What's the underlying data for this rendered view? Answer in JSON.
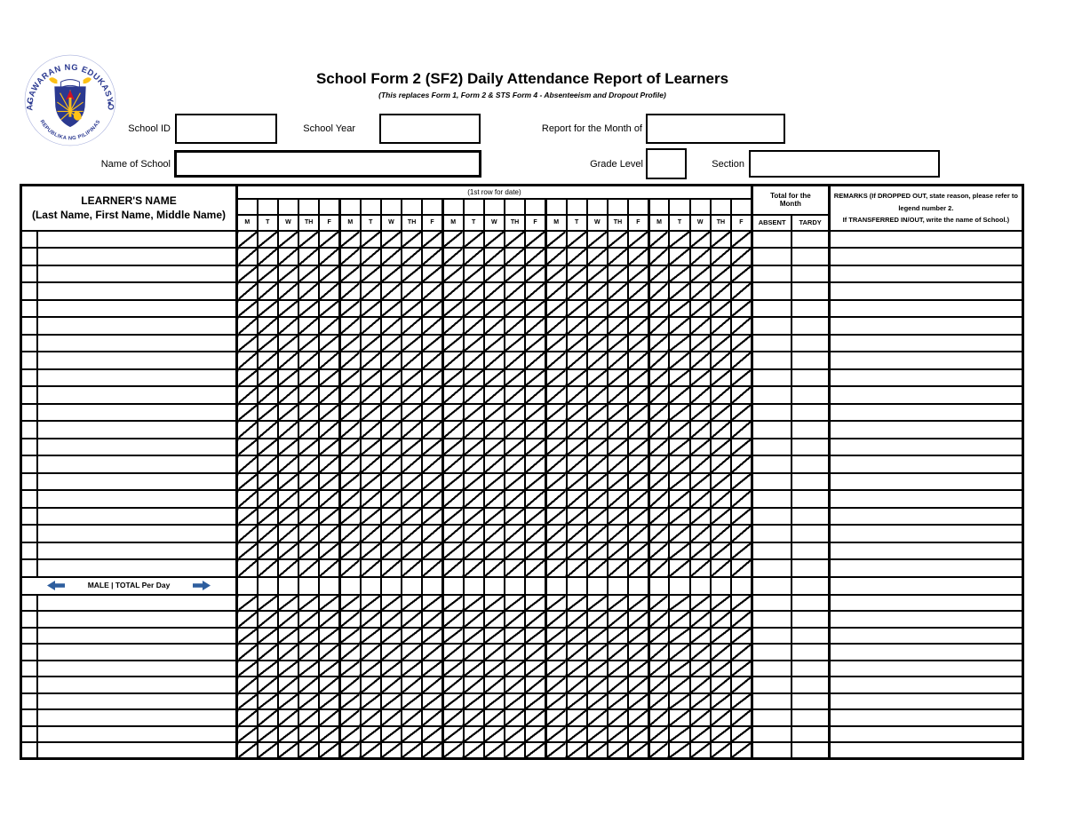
{
  "title": "School Form 2 (SF2) Daily Attendance Report of Learners",
  "subtitle": "(This replaces Form 1, Form 2 & STS Form 4 - Absenteeism and Dropout Profile)",
  "logo": {
    "top_text": "KAGAWARAN NG EDUKASYON",
    "bottom_text": "REPUBLIKA NG PILIPINAS"
  },
  "fields": {
    "school_id": {
      "label": "School ID",
      "value": ""
    },
    "school_year": {
      "label": "School Year",
      "value": ""
    },
    "report_month": {
      "label": "Report for the Month of",
      "value": ""
    },
    "school_name": {
      "label": "Name of School",
      "value": ""
    },
    "grade_level": {
      "label": "Grade Level",
      "value": ""
    },
    "section": {
      "label": "Section",
      "value": ""
    }
  },
  "table": {
    "learners_name_header": {
      "line1": "LEARNER'S NAME",
      "line2": "(Last Name, First Name, Middle Name)"
    },
    "date_row_label": "(1st row for date)",
    "day_headers": [
      "M",
      "T",
      "W",
      "TH",
      "F"
    ],
    "weeks": 5,
    "total_for_month_header": {
      "line1": "Total for the",
      "line2": "Month"
    },
    "absent_header": "ABSENT",
    "tardy_header": "TARDY",
    "remarks_header": {
      "line1": "REMARKS (If DROPPED OUT, state reason, please refer to",
      "line2": "legend number 2.",
      "line3": "If TRANSFERRED IN/OUT, write the name of School.)"
    },
    "male_total_row_label": "MALE | TOTAL Per Day",
    "upper_learner_rows": 20,
    "lower_learner_rows": 10
  },
  "colors": {
    "arrow_blue": "#2e5e9e",
    "logo_blue": "#2b3990",
    "logo_yellow": "#fdc116",
    "logo_red": "#ce1126",
    "grid_black": "#000000"
  }
}
